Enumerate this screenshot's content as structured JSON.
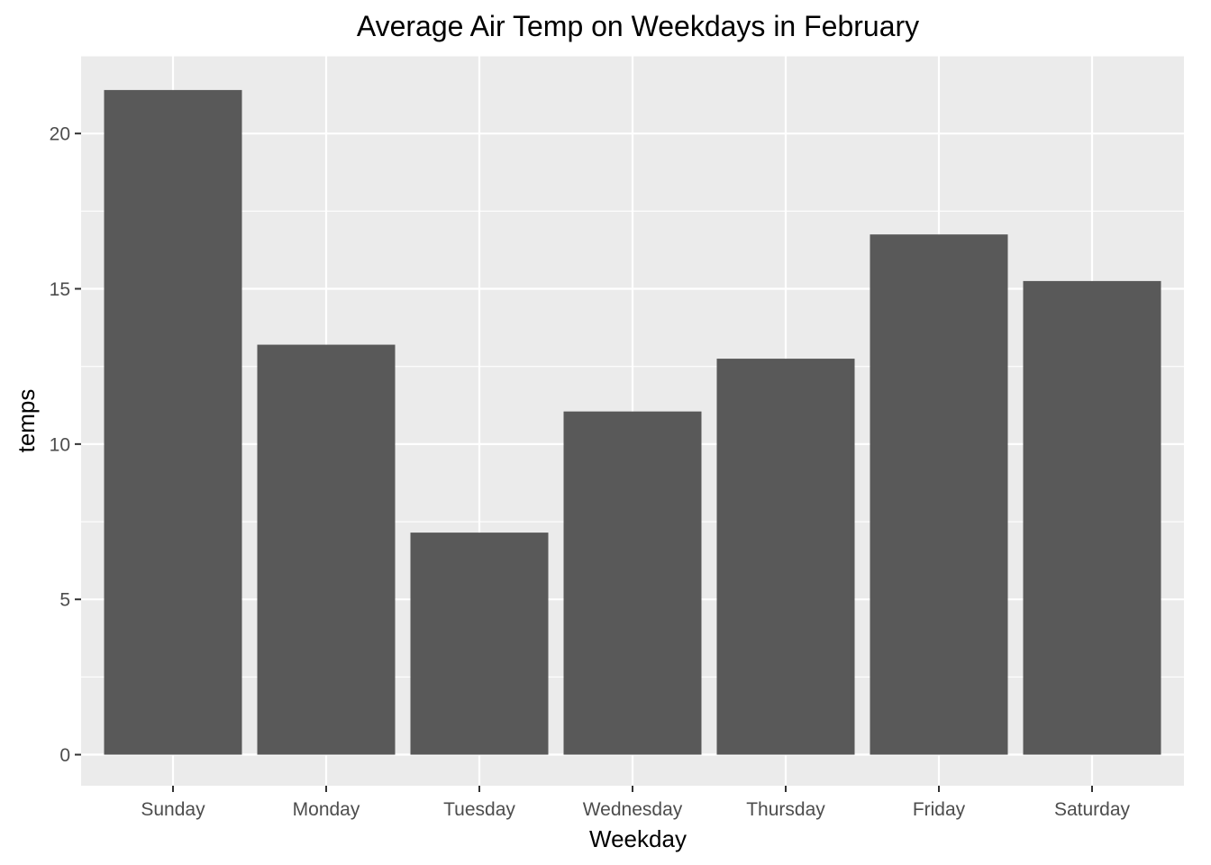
{
  "chart_data": {
    "type": "bar",
    "title": "Average Air Temp on Weekdays in February",
    "xlabel": "Weekday",
    "ylabel": "temps",
    "categories": [
      "Sunday",
      "Monday",
      "Tuesday",
      "Wednesday",
      "Thursday",
      "Friday",
      "Saturday"
    ],
    "values": [
      21.4,
      13.2,
      7.15,
      11.05,
      12.75,
      16.75,
      15.25
    ],
    "ylim": [
      -1,
      22.5
    ],
    "yticks": [
      0,
      5,
      10,
      15,
      20
    ],
    "grid": true,
    "bar_color": "#595959",
    "panel_background": "#ebebeb",
    "grid_color": "#ffffff"
  }
}
